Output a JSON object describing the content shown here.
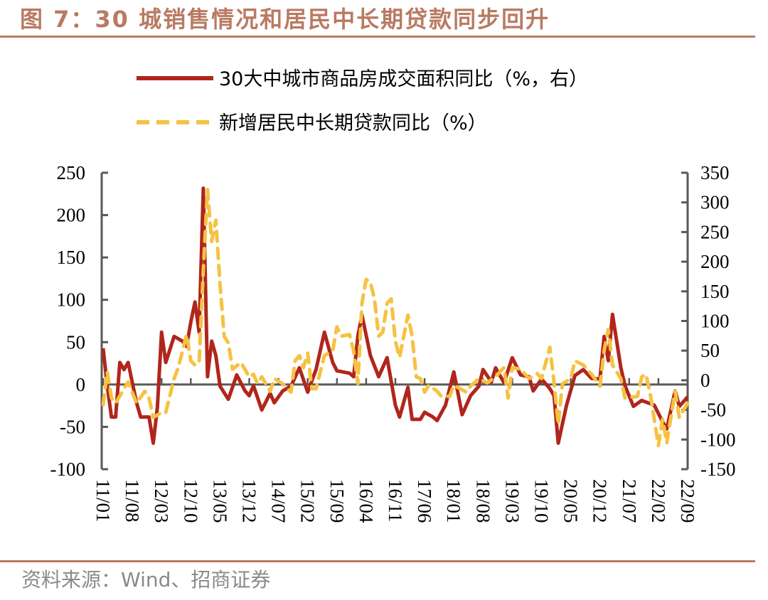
{
  "header": {
    "title": "图 7：30 城销售情况和居民中长期贷款同步回升"
  },
  "footer": {
    "source": "资料来源：Wind、招商证券"
  },
  "chart_data": {
    "type": "line",
    "title": "",
    "x_tick_labels": [
      "11/01",
      "11/08",
      "12/03",
      "12/10",
      "13/05",
      "13/12",
      "14/07",
      "15/02",
      "15/09",
      "16/04",
      "16/11",
      "17/06",
      "18/01",
      "18/08",
      "19/03",
      "19/10",
      "20/05",
      "20/12",
      "21/07",
      "22/02",
      "22/09"
    ],
    "x_range": [
      "11/01",
      "22/09"
    ],
    "y_left": {
      "range": [
        -100,
        250
      ],
      "ticks": [
        -100,
        -50,
        0,
        50,
        100,
        150,
        200,
        250
      ]
    },
    "y_right": {
      "range": [
        -150,
        350
      ],
      "ticks": [
        -150,
        -100,
        -50,
        0,
        50,
        100,
        150,
        200,
        250,
        300,
        350
      ]
    },
    "grid": false,
    "legend_placement": "top",
    "series": [
      {
        "name": "30大中城市商品房成交面积同比（%，右）",
        "axis": "right",
        "style": "solid",
        "color": "#b0261c",
        "points": [
          [
            "11/01",
            54
          ],
          [
            "11/02",
            -10
          ],
          [
            "11/03",
            -62
          ],
          [
            "11/04",
            -62
          ],
          [
            "11/05",
            30
          ],
          [
            "11/06",
            18
          ],
          [
            "11/07",
            30
          ],
          [
            "11/09",
            -38
          ],
          [
            "11/10",
            -62
          ],
          [
            "11/12",
            -62
          ],
          [
            "12/01",
            -106
          ],
          [
            "12/02",
            -46
          ],
          [
            "12/03",
            81
          ],
          [
            "12/04",
            30
          ],
          [
            "12/06",
            74
          ],
          [
            "12/08",
            66
          ],
          [
            "12/09",
            57
          ],
          [
            "12/10",
            98
          ],
          [
            "12/11",
            132
          ],
          [
            "12/12",
            81
          ],
          [
            "13/01",
            324
          ],
          [
            "13/02",
            6
          ],
          [
            "13/03",
            66
          ],
          [
            "13/04",
            42
          ],
          [
            "13/05",
            -10
          ],
          [
            "13/07",
            -32
          ],
          [
            "13/09",
            9
          ],
          [
            "13/11",
            -18
          ],
          [
            "13/12",
            -26
          ],
          [
            "14/01",
            -9
          ],
          [
            "14/03",
            -50
          ],
          [
            "14/05",
            -22
          ],
          [
            "14/06",
            -38
          ],
          [
            "14/08",
            -18
          ],
          [
            "14/10",
            -10
          ],
          [
            "14/12",
            21
          ],
          [
            "15/02",
            -20
          ],
          [
            "15/04",
            18
          ],
          [
            "15/06",
            81
          ],
          [
            "15/08",
            30
          ],
          [
            "15/09",
            16
          ],
          [
            "15/12",
            12
          ],
          [
            "16/01",
            6
          ],
          [
            "16/02",
            74
          ],
          [
            "16/03",
            110
          ],
          [
            "16/05",
            42
          ],
          [
            "16/07",
            6
          ],
          [
            "16/09",
            38
          ],
          [
            "16/11",
            -42
          ],
          [
            "16/12",
            -62
          ],
          [
            "17/02",
            -12
          ],
          [
            "17/03",
            -66
          ],
          [
            "17/05",
            -66
          ],
          [
            "17/06",
            -54
          ],
          [
            "17/08",
            -62
          ],
          [
            "17/09",
            -68
          ],
          [
            "17/11",
            -42
          ],
          [
            "18/01",
            14
          ],
          [
            "18/03",
            -58
          ],
          [
            "18/05",
            -26
          ],
          [
            "18/07",
            -10
          ],
          [
            "18/08",
            18
          ],
          [
            "18/10",
            -3
          ],
          [
            "18/11",
            21
          ],
          [
            "19/01",
            -4
          ],
          [
            "19/03",
            38
          ],
          [
            "19/05",
            9
          ],
          [
            "19/07",
            6
          ],
          [
            "19/08",
            -18
          ],
          [
            "19/10",
            2
          ],
          [
            "19/12",
            -14
          ],
          [
            "20/01",
            -26
          ],
          [
            "20/02",
            -106
          ],
          [
            "20/04",
            -42
          ],
          [
            "20/06",
            8
          ],
          [
            "20/08",
            18
          ],
          [
            "20/10",
            3
          ],
          [
            "20/12",
            2
          ],
          [
            "21/01",
            74
          ],
          [
            "21/02",
            33
          ],
          [
            "21/03",
            111
          ],
          [
            "21/05",
            21
          ],
          [
            "21/06",
            -9
          ],
          [
            "21/08",
            -44
          ],
          [
            "21/10",
            -34
          ],
          [
            "22/01",
            -42
          ],
          [
            "22/03",
            -70
          ],
          [
            "22/04",
            -82
          ],
          [
            "22/06",
            -18
          ],
          [
            "22/07",
            -44
          ],
          [
            "22/09",
            -28
          ]
        ]
      },
      {
        "name": "新增居民中长期贷款同比（%）",
        "axis": "left",
        "style": "dashed",
        "color": "#f5c242",
        "points": [
          [
            "11/01",
            -24
          ],
          [
            "11/02",
            15
          ],
          [
            "11/03",
            -16
          ],
          [
            "11/04",
            -22
          ],
          [
            "11/06",
            -5
          ],
          [
            "11/07",
            3
          ],
          [
            "11/09",
            -22
          ],
          [
            "11/11",
            -8
          ],
          [
            "11/12",
            -16
          ],
          [
            "12/01",
            -39
          ],
          [
            "12/03",
            -33
          ],
          [
            "12/04",
            -33
          ],
          [
            "12/06",
            7
          ],
          [
            "12/07",
            20
          ],
          [
            "12/09",
            59
          ],
          [
            "12/10",
            28
          ],
          [
            "12/11",
            23
          ],
          [
            "12/12",
            26
          ],
          [
            "13/01",
            135
          ],
          [
            "13/02",
            230
          ],
          [
            "13/03",
            169
          ],
          [
            "13/04",
            194
          ],
          [
            "13/05",
            118
          ],
          [
            "13/06",
            57
          ],
          [
            "13/07",
            49
          ],
          [
            "13/08",
            18
          ],
          [
            "13/10",
            26
          ],
          [
            "13/12",
            9
          ],
          [
            "14/01",
            12
          ],
          [
            "14/02",
            1
          ],
          [
            "14/03",
            9
          ],
          [
            "14/05",
            -8
          ],
          [
            "14/06",
            7
          ],
          [
            "14/08",
            1
          ],
          [
            "14/10",
            -9
          ],
          [
            "14/11",
            28
          ],
          [
            "14/12",
            34
          ],
          [
            "15/01",
            20
          ],
          [
            "15/02",
            37
          ],
          [
            "15/03",
            -5
          ],
          [
            "15/04",
            -5
          ],
          [
            "15/06",
            34
          ],
          [
            "15/08",
            40
          ],
          [
            "15/09",
            68
          ],
          [
            "15/10",
            57
          ],
          [
            "15/12",
            59
          ],
          [
            "16/01",
            40
          ],
          [
            "16/02",
            1
          ],
          [
            "16/03",
            96
          ],
          [
            "16/04",
            124
          ],
          [
            "16/05",
            121
          ],
          [
            "16/06",
            101
          ],
          [
            "16/07",
            57
          ],
          [
            "16/08",
            62
          ],
          [
            "16/09",
            96
          ],
          [
            "16/10",
            101
          ],
          [
            "16/11",
            51
          ],
          [
            "16/12",
            32
          ],
          [
            "17/02",
            82
          ],
          [
            "17/03",
            57
          ],
          [
            "17/04",
            9
          ],
          [
            "17/05",
            7
          ],
          [
            "17/06",
            -9
          ],
          [
            "17/07",
            -1
          ],
          [
            "17/09",
            -8
          ],
          [
            "17/10",
            -14
          ],
          [
            "17/12",
            -14
          ],
          [
            "18/01",
            -1
          ],
          [
            "18/04",
            -9
          ],
          [
            "18/05",
            -2
          ],
          [
            "18/07",
            7
          ],
          [
            "18/09",
            2
          ],
          [
            "18/11",
            9
          ],
          [
            "19/01",
            20
          ],
          [
            "19/02",
            -16
          ],
          [
            "19/03",
            20
          ],
          [
            "19/05",
            18
          ],
          [
            "19/07",
            7
          ],
          [
            "19/09",
            13
          ],
          [
            "19/10",
            7
          ],
          [
            "19/12",
            44
          ],
          [
            "20/01",
            3
          ],
          [
            "20/02",
            -47
          ],
          [
            "20/03",
            1
          ],
          [
            "20/05",
            7
          ],
          [
            "20/06",
            28
          ],
          [
            "20/08",
            23
          ],
          [
            "20/10",
            12
          ],
          [
            "20/12",
            -2
          ],
          [
            "21/01",
            40
          ],
          [
            "21/02",
            65
          ],
          [
            "21/03",
            23
          ],
          [
            "21/05",
            7
          ],
          [
            "21/06",
            -16
          ],
          [
            "21/09",
            -14
          ],
          [
            "21/10",
            9
          ],
          [
            "21/11",
            12
          ],
          [
            "21/12",
            -10
          ],
          [
            "22/02",
            -72
          ],
          [
            "22/03",
            -41
          ],
          [
            "22/04",
            -69
          ],
          [
            "22/06",
            -8
          ],
          [
            "22/07",
            -39
          ],
          [
            "22/09",
            -22
          ]
        ]
      }
    ]
  }
}
